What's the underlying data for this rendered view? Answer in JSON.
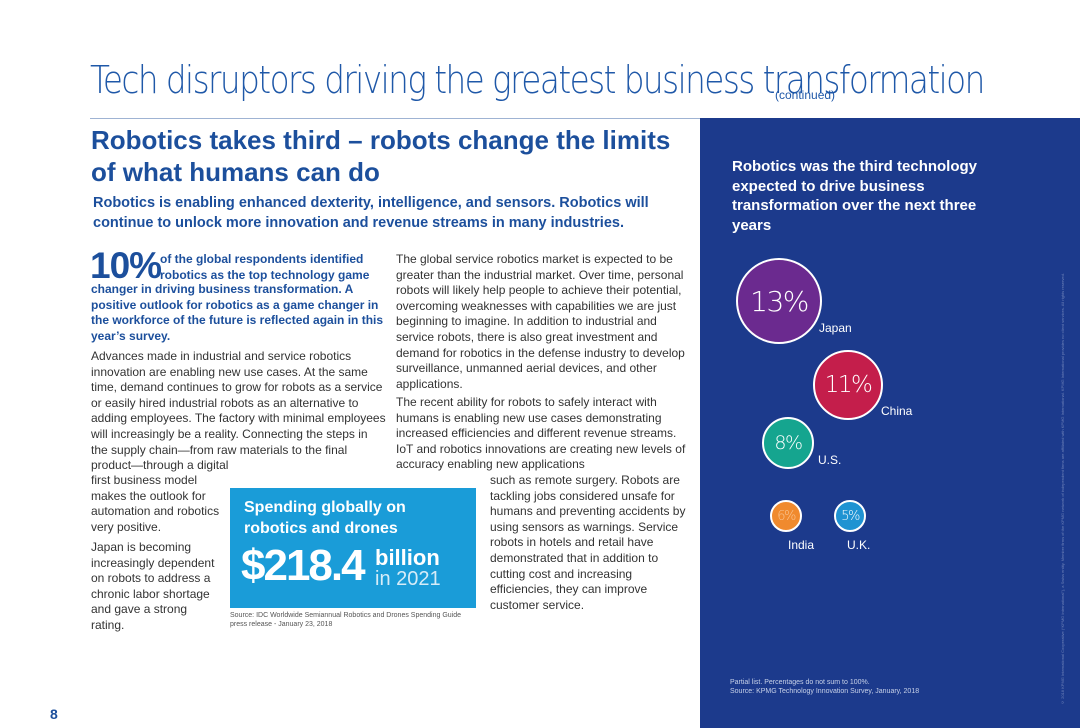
{
  "header": {
    "title": "Tech disruptors driving the greatest business transformation",
    "continued": "(continued)"
  },
  "section": {
    "heading": "Robotics takes third – robots change the limits of what humans can do",
    "intro": "Robotics is enabling enhanced dexterity, intelligence, and sensors. Robotics will continue to unlock more innovation and revenue streams in many industries."
  },
  "left_column": {
    "stat": "10%",
    "lead_part1": "of the global respondents identified robotics as the top technology game",
    "lead_part2": "changer in driving business transformation. A positive outlook for robotics as a game changer in the workforce of the future is reflected again in this year’s survey.",
    "para1": "Advances made in industrial and service robotics innovation are enabling new use cases. At the same time, demand continues to grow for robots as a service or easily hired industrial robots as an alternative to adding employees. The factory with minimal employees will increasingly be a reality. Connecting the steps in the supply chain—from raw materials to the final product—through a digital",
    "para1_cont": "first business model makes the outlook for automation and robotics very positive.",
    "para2": "Japan is becoming increasingly dependent on robots to address a chronic labor shortage and gave a strong rating."
  },
  "middle_column": {
    "para3": "The global service robotics market is expected to be greater than the industrial market. Over time, personal robots will likely help people to achieve their potential, overcoming weaknesses with capabilities we are just beginning to imagine. In addition to industrial and service robots, there is also great investment and demand for robotics in the defense industry to develop surveillance, unmanned aerial devices, and other applications.",
    "para4": "The recent ability for robots to safely interact with humans is enabling new use cases demonstrating increased efficiencies and different revenue streams. IoT and robotics innovations are creating new levels of accuracy enabling new applications",
    "para4_cont": "such as remote surgery. Robots are tackling jobs considered unsafe for humans and preventing accidents by using sensors as warnings. Service robots in hotels and retail have demonstrated that in addition to cutting cost and increasing efficiencies, they can improve customer service."
  },
  "callout": {
    "heading": "Spending globally on robotics and drones",
    "amount": "$218.4",
    "unit": "billion",
    "year": "in 2021",
    "source": "Source: IDC Worldwide Semiannual Robotics and Drones Spending Guide press release - January 23, 2018"
  },
  "panel": {
    "title": "Robotics was the third technology expected to drive business transformation over the next three years",
    "source_line1": "Partial list. Percentages do not sum to 100%.",
    "source_line2": "Source: KPMG Technology Innovation Survey, January, 2018",
    "bubbles": [
      {
        "country": "Japan",
        "value": "13%",
        "color": "#6b2a8f"
      },
      {
        "country": "China",
        "value": "11%",
        "color": "#c41e4b"
      },
      {
        "country": "U.S.",
        "value": "8%",
        "color": "#15a58f"
      },
      {
        "country": "India",
        "value": "6%",
        "color": "#f08a2e"
      },
      {
        "country": "U.K.",
        "value": "5%",
        "color": "#1f93d2"
      }
    ]
  },
  "vertical_legal": "© 2018 KPMG International Cooperative (“KPMG International”), a Swiss entity. Member firms of the KPMG network of independent firms are affiliated with KPMG International. KPMG International provides no client services. All rights reserved.",
  "page_number": "8"
}
